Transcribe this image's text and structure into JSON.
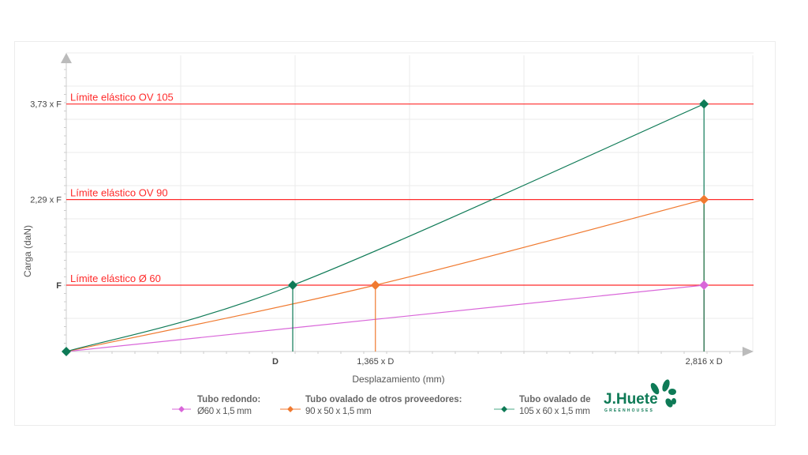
{
  "chart_data": {
    "type": "line",
    "xlabel": "Desplazamiento (mm)",
    "ylabel": "Carga (daN)",
    "x_ticks": [
      {
        "value": 1,
        "label": "D"
      },
      {
        "value": 1.365,
        "label": "1,365 x D"
      },
      {
        "value": 2.816,
        "label": "2,816 x D"
      }
    ],
    "y_ticks": [
      {
        "value": 1,
        "label": "F"
      },
      {
        "value": 2.29,
        "label": "2,29 x F"
      },
      {
        "value": 3.73,
        "label": "3,73 x F"
      }
    ],
    "xlim": [
      0,
      3
    ],
    "ylim": [
      0,
      4.4
    ],
    "grid": true,
    "reference_lines": [
      {
        "y": 3.73,
        "label": "Límite elástico OV 105",
        "color": "#ff2a2a"
      },
      {
        "y": 2.29,
        "label": "Límite elástico OV 90",
        "color": "#ff2a2a"
      },
      {
        "y": 1,
        "label": "Límite elástico Ø 60",
        "color": "#ff2a2a"
      }
    ],
    "series": [
      {
        "name": "Tubo redondo: Ø60 x 1,5 mm",
        "color": "#d966d9",
        "points": [
          [
            0,
            0
          ],
          [
            2.816,
            1
          ]
        ]
      },
      {
        "name": "Tubo ovalado de otros proveedores: 90 x 50 x 1,5 mm",
        "color": "#f07a30",
        "points": [
          [
            0,
            0
          ],
          [
            1.365,
            1
          ],
          [
            2.816,
            2.29
          ]
        ]
      },
      {
        "name": "Tubo ovalado de J.Huete: 105 x 60 x 1,5 mm",
        "color": "#0e7a56",
        "points": [
          [
            0,
            0
          ],
          [
            1,
            1
          ],
          [
            2.816,
            3.73
          ]
        ]
      }
    ],
    "legend_position": "bottom"
  },
  "legend": [
    {
      "title": "Tubo redondo:",
      "sub": "Ø60 x 1,5 mm"
    },
    {
      "title": "Tubo ovalado de otros proveedores:",
      "sub": "90 x 50 x 1,5 mm"
    },
    {
      "title": "Tubo ovalado de",
      "sub": "105 x 60 x 1,5 mm"
    }
  ],
  "logo": {
    "name": "J.Huete",
    "tagline": "GREENHOUSES"
  }
}
